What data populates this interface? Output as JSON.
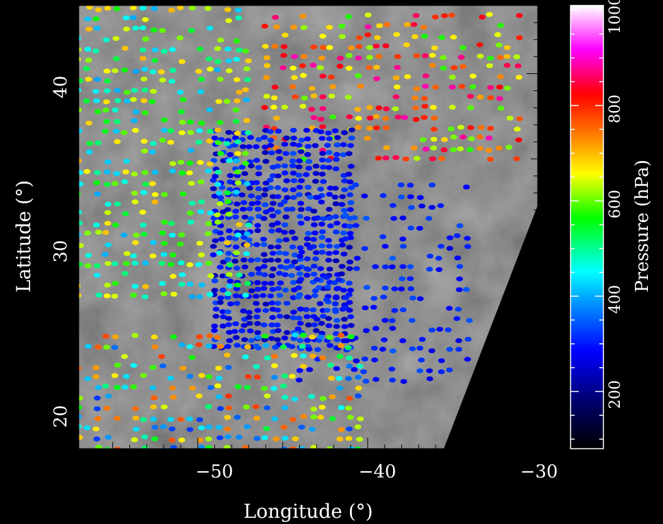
{
  "chart_data": {
    "type": "scatter",
    "title": "",
    "xlabel": "Longitude (°)",
    "ylabel": "Latitude (°)",
    "xlim": [
      -57,
      -30
    ],
    "ylim": [
      18,
      44
    ],
    "x_ticks": [
      -50,
      -40,
      -30
    ],
    "x_tick_labels": [
      "−50",
      "−40",
      "−30"
    ],
    "y_ticks": [
      20,
      30,
      40
    ],
    "y_tick_labels": [
      "20",
      "30",
      "40"
    ],
    "background": "grayscale satellite cloud image",
    "grid": false,
    "colorbar": {
      "label": "Pressure (hPa)",
      "range": [
        80,
        1010
      ],
      "ticks": [
        200,
        400,
        600,
        800,
        1000
      ],
      "tick_labels": [
        "200",
        "400",
        "600",
        "800",
        "1000"
      ],
      "colormap": [
        "#000000",
        "#000066",
        "#0000ff",
        "#0088ff",
        "#00ffff",
        "#00ff00",
        "#ffff00",
        "#ff8800",
        "#ff0000",
        "#ff00ff",
        "#ffffff"
      ]
    },
    "swath_regions": [
      {
        "name": "upper-right band",
        "lon": [
          -46,
          -31
        ],
        "lat": [
          35,
          44
        ],
        "pressure": [
          550,
          900
        ]
      },
      {
        "name": "central deep core",
        "lon": [
          -49,
          -41
        ],
        "lat": [
          24,
          37
        ],
        "pressure": [
          220,
          320
        ]
      },
      {
        "name": "eastern sparse cells",
        "lon": [
          -44,
          -34
        ],
        "lat": [
          22,
          34
        ],
        "pressure": [
          250,
          330
        ]
      },
      {
        "name": "western streaks",
        "lon": [
          -57,
          -47
        ],
        "lat": [
          27,
          44
        ],
        "pressure": [
          380,
          700
        ]
      },
      {
        "name": "southern edge",
        "lon": [
          -57,
          -40
        ],
        "lat": [
          18,
          25
        ],
        "pressure": [
          300,
          800
        ]
      }
    ]
  }
}
